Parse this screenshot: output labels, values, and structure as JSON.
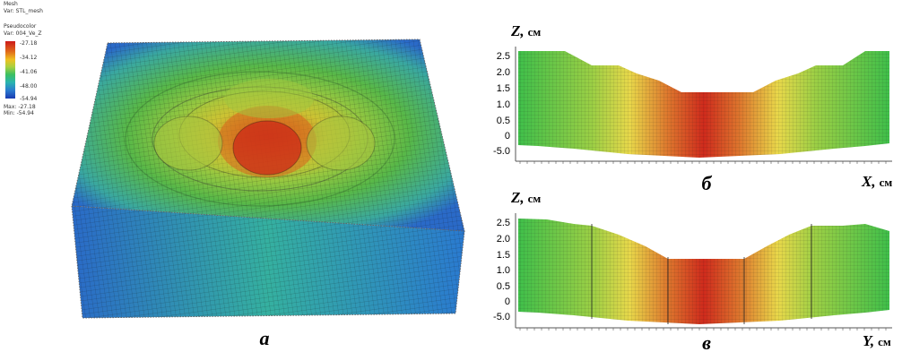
{
  "legend": {
    "mesh_title": "Mesh",
    "mesh_var": "Var: STL_mesh",
    "pseudocolor_title": "Pseudocolor",
    "pseudocolor_var": "Var: 004_Ve_Z",
    "ticks": [
      "-27.18",
      "-34.12",
      "-41.06",
      "-48.00",
      "-54.94"
    ],
    "max_text": "Max: -27.18",
    "min_text": "Min: -54.94",
    "colors": [
      "#cc1a1a",
      "#e06a1a",
      "#f0c020",
      "#a8d040",
      "#3cc060",
      "#2ab4b0",
      "#2a7ad0",
      "#1a3ab0"
    ]
  },
  "panel_a": {
    "label": "a"
  },
  "panel_b": {
    "label": "б",
    "z_axis_title": "Z,",
    "z_axis_unit": "см",
    "x_axis_title": "X,",
    "x_axis_unit": "см",
    "y_ticks": [
      "2.5",
      "2.0",
      "1.5",
      "1.0",
      "0.5",
      "0",
      "-5.0"
    ]
  },
  "panel_c": {
    "label": "в",
    "z_axis_title": "Z,",
    "z_axis_unit": "см",
    "x_axis_title": "Y,",
    "x_axis_unit": "см",
    "y_ticks": [
      "2.5",
      "2.0",
      "1.5",
      "1.0",
      "0.5",
      "0",
      "-5.0"
    ]
  }
}
